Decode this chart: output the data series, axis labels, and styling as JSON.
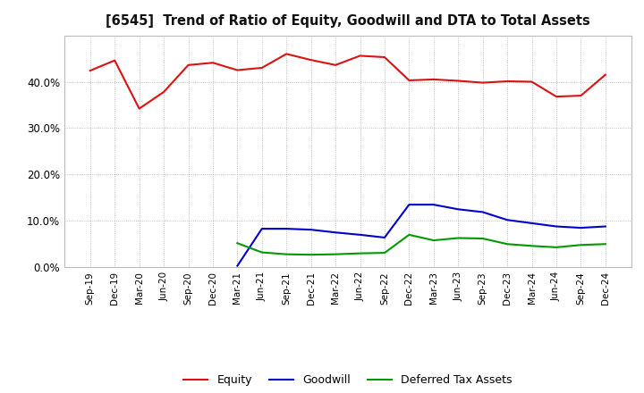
{
  "title": "[6545]  Trend of Ratio of Equity, Goodwill and DTA to Total Assets",
  "x_labels": [
    "Sep-19",
    "Dec-19",
    "Mar-20",
    "Jun-20",
    "Sep-20",
    "Dec-20",
    "Mar-21",
    "Jun-21",
    "Sep-21",
    "Dec-21",
    "Mar-22",
    "Jun-22",
    "Sep-22",
    "Dec-22",
    "Mar-23",
    "Jun-23",
    "Sep-23",
    "Dec-23",
    "Mar-24",
    "Jun-24",
    "Sep-24",
    "Dec-24"
  ],
  "equity": [
    0.424,
    0.446,
    0.342,
    0.378,
    0.436,
    0.441,
    0.425,
    0.43,
    0.46,
    0.447,
    0.436,
    0.456,
    0.453,
    0.403,
    0.405,
    0.402,
    0.398,
    0.401,
    0.4,
    0.368,
    0.37,
    0.415
  ],
  "goodwill": [
    null,
    null,
    null,
    null,
    null,
    null,
    0.003,
    0.083,
    0.083,
    0.081,
    0.075,
    0.07,
    0.064,
    0.135,
    0.135,
    0.125,
    0.119,
    0.102,
    0.095,
    0.088,
    0.085,
    0.088
  ],
  "dta": [
    null,
    null,
    null,
    null,
    null,
    null,
    0.052,
    0.032,
    0.028,
    0.027,
    0.028,
    0.03,
    0.031,
    0.07,
    0.058,
    0.063,
    0.062,
    0.05,
    0.046,
    0.043,
    0.048,
    0.05
  ],
  "equity_color": "#dd1111",
  "goodwill_color": "#0000cc",
  "dta_color": "#009900",
  "bg_color": "#ffffff",
  "plot_bg_color": "#ffffff",
  "grid_color": "#999999",
  "ylim": [
    0.0,
    0.5
  ],
  "yticks": [
    0.0,
    0.1,
    0.2,
    0.3,
    0.4
  ],
  "legend_labels": [
    "Equity",
    "Goodwill",
    "Deferred Tax Assets"
  ]
}
